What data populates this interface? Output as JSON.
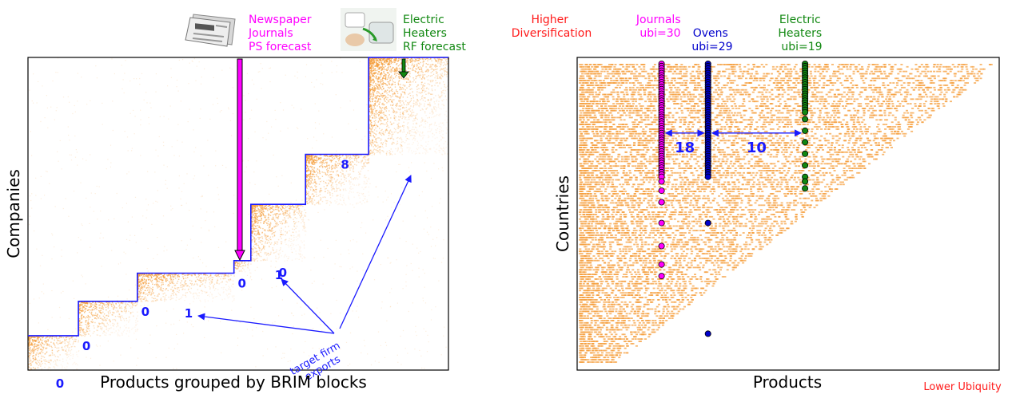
{
  "colors": {
    "density": "#f5a040",
    "blocks": "#1a1aff",
    "newspaper": "#ff00ff",
    "heaters": "#118811",
    "ovens": "#0000cc",
    "red_label": "#ff1a1a"
  },
  "chart_data": [
    {
      "type": "heatmap",
      "name": "left-panel",
      "xlabel": "Products grouped by BRIM blocks",
      "ylabel": "Companies",
      "blocks": [
        {
          "label": "0",
          "x_range": [
            0,
            0.12
          ],
          "y_range": [
            0,
            0.11
          ]
        },
        {
          "label": "0",
          "x_range": [
            0.12,
            0.26
          ],
          "y_range": [
            0.11,
            0.22
          ]
        },
        {
          "label": "0",
          "x_range": [
            0.26,
            0.49
          ],
          "y_range": [
            0.22,
            0.31
          ]
        },
        {
          "label": "0",
          "x_range": [
            0.49,
            0.53
          ],
          "y_range": [
            0.31,
            0.35
          ]
        },
        {
          "label": "0",
          "x_range": [
            0.53,
            0.66
          ],
          "y_range": [
            0.35,
            0.53
          ]
        },
        {
          "label": "8",
          "x_range": [
            0.66,
            0.81
          ],
          "y_range": [
            0.53,
            0.69
          ]
        },
        {
          "label": "",
          "x_range": [
            0.81,
            1.0
          ],
          "y_range": [
            0.69,
            1.0
          ]
        }
      ],
      "exports_annotation": {
        "text": [
          "target firm",
          "exports"
        ],
        "counts": [
          "1",
          "1",
          "8"
        ]
      },
      "forecasts": [
        {
          "lines": [
            "Newspaper",
            "Journals",
            "PS forecast"
          ],
          "color_key": "newspaper",
          "icon": "newspaper-icon"
        },
        {
          "lines": [
            "Electric",
            "Heaters",
            "RF forecast"
          ],
          "color_key": "heaters",
          "icon": "heater-icon"
        }
      ]
    },
    {
      "type": "scatter",
      "name": "right-panel",
      "xlabel": "Products",
      "ylabel": "Countries",
      "corner_labels": {
        "top": [
          "Higher",
          "Diversification"
        ],
        "bottom": "Lower Ubiquity"
      },
      "series": [
        {
          "name_lines": [
            "Journals",
            "ubi=30"
          ],
          "color_key": "newspaper",
          "x": 0.2,
          "rows": [
            1,
            2,
            3,
            4,
            5,
            6,
            7,
            8,
            9,
            10,
            11,
            12,
            13,
            14,
            15,
            16,
            17,
            18,
            19,
            20,
            21,
            22,
            23,
            24,
            25,
            26,
            27,
            28,
            29,
            30,
            31,
            32,
            33,
            34,
            35,
            36,
            37,
            38,
            39,
            40,
            41,
            42,
            43,
            44,
            45,
            46,
            47,
            48,
            49,
            50,
            52,
            56,
            61,
            70,
            80,
            88,
            93
          ]
        },
        {
          "name_lines": [
            "Ovens",
            "ubi=29"
          ],
          "color_key": "ovens",
          "x": 0.31,
          "rows": [
            1,
            2,
            3,
            4,
            5,
            6,
            7,
            8,
            9,
            10,
            11,
            12,
            13,
            14,
            15,
            16,
            17,
            18,
            19,
            20,
            21,
            22,
            23,
            24,
            25,
            26,
            27,
            28,
            29,
            30,
            31,
            32,
            33,
            34,
            35,
            36,
            37,
            38,
            39,
            40,
            41,
            42,
            43,
            44,
            45,
            46,
            47,
            48,
            49,
            50,
            70,
            118
          ]
        },
        {
          "name_lines": [
            "Electric",
            "Heaters",
            "ubi=19"
          ],
          "color_key": "heaters",
          "x": 0.54,
          "rows": [
            1,
            2,
            3,
            4,
            5,
            6,
            7,
            8,
            9,
            10,
            11,
            12,
            13,
            14,
            15,
            16,
            17,
            18,
            19,
            20,
            21,
            22,
            25,
            30,
            35,
            40,
            45,
            50,
            52,
            55
          ]
        }
      ],
      "gaps": [
        {
          "value": "18",
          "from_x": 0.2,
          "to_x": 0.31
        },
        {
          "value": "10",
          "from_x": 0.31,
          "to_x": 0.54
        }
      ]
    }
  ]
}
